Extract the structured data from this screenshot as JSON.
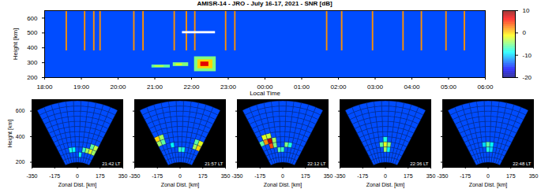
{
  "chart_data": [
    {
      "type": "heatmap",
      "title": "AMISR-14 - JRO - July 16-17, 2021 - SNR [dB]",
      "xlabel": "Local Time",
      "ylabel": "Height [km]",
      "xlim": [
        18,
        30
      ],
      "xticks": [
        {
          "value": 18,
          "label": "18:00"
        },
        {
          "value": 19,
          "label": "19:00"
        },
        {
          "value": 20,
          "label": "20:00"
        },
        {
          "value": 21,
          "label": "21:00"
        },
        {
          "value": 22,
          "label": "22:00"
        },
        {
          "value": 23,
          "label": "23:00"
        },
        {
          "value": 24,
          "label": "00:00"
        },
        {
          "value": 25,
          "label": "01:00"
        },
        {
          "value": 26,
          "label": "02:00"
        },
        {
          "value": 27,
          "label": "03:00"
        },
        {
          "value": 28,
          "label": "04:00"
        },
        {
          "value": 29,
          "label": "05:00"
        },
        {
          "value": 30,
          "label": "06:00"
        }
      ],
      "ylim": [
        200,
        650
      ],
      "yticks": [
        200,
        300,
        400,
        500,
        600
      ],
      "colorbar": {
        "range": [
          -20,
          10
        ],
        "ticks": [
          -20,
          -10,
          0,
          10
        ]
      },
      "white_bar": {
        "x": [
          21.75,
          22.65
        ],
        "y": [
          495,
          510
        ],
        "color": "#ffffff"
      },
      "cells": [
        {
          "x0": 18,
          "x1": 30,
          "y0": 200,
          "y1": 650,
          "snr": -14
        },
        {
          "x0": 20.92,
          "x1": 21.42,
          "y0": 265,
          "y1": 285,
          "snr": -6
        },
        {
          "x0": 21.0,
          "x1": 21.25,
          "y0": 270,
          "y1": 280,
          "snr": -3
        },
        {
          "x0": 21.5,
          "x1": 21.92,
          "y0": 275,
          "y1": 300,
          "snr": -5
        },
        {
          "x0": 21.58,
          "x1": 21.75,
          "y0": 280,
          "y1": 292,
          "snr": -2
        },
        {
          "x0": 22.08,
          "x1": 22.67,
          "y0": 240,
          "y1": 340,
          "snr": -5
        },
        {
          "x0": 22.17,
          "x1": 22.58,
          "y0": 260,
          "y1": 320,
          "snr": 0
        },
        {
          "x0": 22.25,
          "x1": 22.47,
          "y0": 275,
          "y1": 305,
          "snr": 7
        },
        {
          "x0": 18.58,
          "x1": 18.62,
          "y0": 380,
          "y1": 650,
          "snr": 2
        },
        {
          "x0": 19.08,
          "x1": 19.12,
          "y0": 380,
          "y1": 650,
          "snr": 2
        },
        {
          "x0": 19.33,
          "x1": 19.37,
          "y0": 380,
          "y1": 650,
          "snr": 2
        },
        {
          "x0": 19.5,
          "x1": 19.54,
          "y0": 380,
          "y1": 650,
          "snr": 2
        },
        {
          "x0": 20.42,
          "x1": 20.46,
          "y0": 380,
          "y1": 650,
          "snr": 2
        },
        {
          "x0": 20.67,
          "x1": 20.71,
          "y0": 380,
          "y1": 650,
          "snr": 2
        },
        {
          "x0": 21.52,
          "x1": 21.56,
          "y0": 380,
          "y1": 650,
          "snr": 2
        },
        {
          "x0": 21.85,
          "x1": 21.89,
          "y0": 380,
          "y1": 650,
          "snr": 2
        },
        {
          "x0": 22.08,
          "x1": 22.12,
          "y0": 380,
          "y1": 650,
          "snr": 2
        },
        {
          "x0": 22.92,
          "x1": 22.96,
          "y0": 380,
          "y1": 650,
          "snr": 2
        },
        {
          "x0": 23.17,
          "x1": 23.21,
          "y0": 380,
          "y1": 650,
          "snr": 2
        },
        {
          "x0": 25.67,
          "x1": 25.71,
          "y0": 380,
          "y1": 650,
          "snr": 2
        },
        {
          "x0": 26.08,
          "x1": 26.12,
          "y0": 380,
          "y1": 650,
          "snr": 2
        },
        {
          "x0": 26.92,
          "x1": 26.96,
          "y0": 380,
          "y1": 650,
          "snr": 2
        },
        {
          "x0": 27.75,
          "x1": 27.79,
          "y0": 380,
          "y1": 650,
          "snr": 2
        },
        {
          "x0": 28.25,
          "x1": 28.29,
          "y0": 380,
          "y1": 650,
          "snr": 2
        },
        {
          "x0": 28.92,
          "x1": 28.96,
          "y0": 380,
          "y1": 650,
          "snr": 2
        },
        {
          "x0": 29.42,
          "x1": 29.46,
          "y0": 380,
          "y1": 650,
          "snr": 2
        }
      ]
    },
    {
      "type": "fan",
      "title": "21:42 LT",
      "xlabel": "Zonal Dist. [km]",
      "ylabel": "Height [km]",
      "xlim": [
        -350,
        350
      ],
      "xticks": [
        -350,
        -175,
        0,
        175,
        350
      ],
      "ylim": [
        160,
        690
      ],
      "yticks": [
        200,
        400,
        600
      ],
      "beam_edges_deg": [
        -27,
        -22.09,
        -17.18,
        -12.27,
        -7.36,
        -2.45,
        2.45,
        7.36,
        12.27,
        17.18,
        22.09,
        27
      ],
      "range_edges_km": [
        200,
        240,
        280,
        320,
        360,
        400,
        440,
        480,
        520,
        560,
        600,
        640,
        680
      ],
      "background": -14,
      "cells": [
        {
          "beam": 8,
          "gate": 2,
          "snr": -4
        },
        {
          "beam": 9,
          "gate": 2,
          "snr": -2
        },
        {
          "beam": 10,
          "gate": 2,
          "snr": -4
        },
        {
          "beam": 10,
          "gate": 3,
          "snr": -3
        },
        {
          "beam": 9,
          "gate": 3,
          "snr": -6
        },
        {
          "beam": 7,
          "gate": 2,
          "snr": -7
        },
        {
          "beam": 3,
          "gate": 2,
          "snr": -8
        },
        {
          "beam": 4,
          "gate": 2,
          "snr": -9
        },
        {
          "beam": 6,
          "gate": 1,
          "snr": -9
        }
      ]
    },
    {
      "type": "fan",
      "title": "21:57 LT",
      "xlabel": "Zonal Dist. [km]",
      "tick_labels": "x",
      "xlim": [
        -350,
        350
      ],
      "xticks": [
        -350,
        -175,
        0,
        175,
        350
      ],
      "ylim": [
        160,
        690
      ],
      "yticks": [
        200,
        400,
        600
      ],
      "beam_edges_deg": [
        -27,
        -22.09,
        -17.18,
        -12.27,
        -7.36,
        -2.45,
        2.45,
        7.36,
        12.27,
        17.18,
        22.09,
        27
      ],
      "range_edges_km": [
        200,
        240,
        280,
        320,
        360,
        400,
        440,
        480,
        520,
        560,
        600,
        640,
        680
      ],
      "background": -14,
      "cells": [
        {
          "beam": 0,
          "gate": 5,
          "snr": 0
        },
        {
          "beam": 0,
          "gate": 4,
          "snr": -4
        },
        {
          "beam": 1,
          "gate": 5,
          "snr": -4
        },
        {
          "beam": 1,
          "gate": 4,
          "snr": -6
        },
        {
          "beam": 10,
          "gate": 3,
          "snr": 0
        },
        {
          "beam": 10,
          "gate": 4,
          "snr": -2
        },
        {
          "beam": 9,
          "gate": 3,
          "snr": -4
        },
        {
          "beam": 9,
          "gate": 4,
          "snr": -6
        },
        {
          "beam": 5,
          "gate": 2,
          "snr": -7
        },
        {
          "beam": 6,
          "gate": 2,
          "snr": -8
        },
        {
          "beam": 3,
          "gate": 3,
          "snr": -9
        }
      ]
    },
    {
      "type": "fan",
      "title": "22:12 LT",
      "xlabel": "Zonal Dist. [km]",
      "tick_labels": "x",
      "xlim": [
        -350,
        350
      ],
      "xticks": [
        -350,
        -175,
        0,
        175,
        350
      ],
      "ylim": [
        160,
        690
      ],
      "yticks": [
        200,
        400,
        600
      ],
      "beam_edges_deg": [
        -27,
        -22.09,
        -17.18,
        -12.27,
        -7.36,
        -2.45,
        2.45,
        7.36,
        12.27,
        17.18,
        22.09,
        27
      ],
      "range_edges_km": [
        200,
        240,
        280,
        320,
        360,
        400,
        440,
        480,
        520,
        560,
        600,
        640,
        680
      ],
      "background": -14,
      "cells": [
        {
          "beam": 2,
          "gate": 4,
          "snr": 8
        },
        {
          "beam": 2,
          "gate": 3,
          "snr": 4
        },
        {
          "beam": 1,
          "gate": 4,
          "snr": 2
        },
        {
          "beam": 1,
          "gate": 5,
          "snr": -2
        },
        {
          "beam": 2,
          "gate": 5,
          "snr": -3
        },
        {
          "beam": 3,
          "gate": 4,
          "snr": -4
        },
        {
          "beam": 3,
          "gate": 3,
          "snr": -5
        },
        {
          "beam": 0,
          "gate": 4,
          "snr": -6
        },
        {
          "beam": 4,
          "gate": 2,
          "snr": -6
        },
        {
          "beam": 5,
          "gate": 2,
          "snr": -7
        },
        {
          "beam": 6,
          "gate": 3,
          "snr": -5
        },
        {
          "beam": 7,
          "gate": 3,
          "snr": -8
        }
      ]
    },
    {
      "type": "fan",
      "title": "22:36 LT",
      "xlabel": "Zonal Dist. [km]",
      "tick_labels": "x",
      "xlim": [
        -350,
        350
      ],
      "xticks": [
        -350,
        -175,
        0,
        175,
        350
      ],
      "ylim": [
        160,
        690
      ],
      "yticks": [
        200,
        400,
        600
      ],
      "beam_edges_deg": [
        -27,
        -22.09,
        -17.18,
        -12.27,
        -7.36,
        -2.45,
        2.45,
        7.36,
        12.27,
        17.18,
        22.09,
        27
      ],
      "range_edges_km": [
        200,
        240,
        280,
        320,
        360,
        400,
        440,
        480,
        520,
        560,
        600,
        640,
        680
      ],
      "background": -14,
      "cells": [
        {
          "beam": 5,
          "gate": 3,
          "snr": -2
        },
        {
          "beam": 5,
          "gate": 2,
          "snr": -4
        },
        {
          "beam": 6,
          "gate": 3,
          "snr": -5
        },
        {
          "beam": 4,
          "gate": 3,
          "snr": -6
        },
        {
          "beam": 5,
          "gate": 4,
          "snr": -8
        },
        {
          "beam": 6,
          "gate": 2,
          "snr": -9
        }
      ]
    },
    {
      "type": "fan",
      "title": "22:48 LT",
      "xlabel": "Zonal Dist. [km]",
      "tick_labels": "x",
      "xlim": [
        -350,
        350
      ],
      "xticks": [
        -350,
        -175,
        0,
        175,
        350
      ],
      "ylim": [
        160,
        690
      ],
      "yticks": [
        200,
        400,
        600
      ],
      "beam_edges_deg": [
        -27,
        -22.09,
        -17.18,
        -12.27,
        -7.36,
        -2.45,
        2.45,
        7.36,
        12.27,
        17.18,
        22.09,
        27
      ],
      "range_edges_km": [
        200,
        240,
        280,
        320,
        360,
        400,
        440,
        480,
        520,
        560,
        600,
        640,
        680
      ],
      "background": -14,
      "cells": [
        {
          "beam": 5,
          "gate": 3,
          "snr": -6
        },
        {
          "beam": 5,
          "gate": 2,
          "snr": -8
        },
        {
          "beam": 6,
          "gate": 3,
          "snr": -9
        },
        {
          "beam": 4,
          "gate": 3,
          "snr": -10
        },
        {
          "beam": 6,
          "gate": 2,
          "snr": -10
        }
      ]
    }
  ]
}
